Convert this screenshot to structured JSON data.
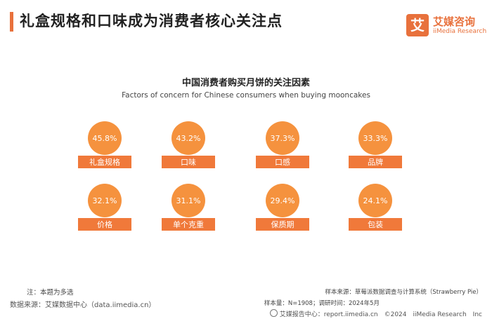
{
  "header": {
    "title": "礼盒规格和口味成为消费者核心关注点",
    "logo_mark": "艾",
    "logo_cn": "艾媒咨询",
    "logo_en": "iiMedia Research"
  },
  "chart_data": {
    "type": "bar",
    "title": "中国消费者购买月饼的关注因素",
    "subtitle": "Factors of concern for Chinese consumers when buying mooncakes",
    "categories": [
      "礼盒规格",
      "口味",
      "口感",
      "品牌",
      "价格",
      "单个克重",
      "保质期",
      "包装"
    ],
    "values": [
      45.8,
      43.2,
      37.3,
      33.3,
      32.1,
      31.1,
      29.4,
      24.1
    ],
    "value_labels": [
      "45.8%",
      "43.2%",
      "37.3%",
      "33.3%",
      "32.1%",
      "31.1%",
      "29.4%",
      "24.1%"
    ],
    "unit": "%",
    "colors": {
      "circle": "#f5923e",
      "label_box": "#f0793a",
      "text": "#ffffff"
    }
  },
  "footer": {
    "note": "注：本题为多选",
    "source": "数据来源：艾媒数据中心（data.iimedia.cn）",
    "sample_source": "样本来源：草莓派数据调查与计算系统（Strawberry Pie）",
    "sample_size": "样本量：N=1908；调研时间：2024年5月",
    "report_center": "艾媒报告中心：report.iimedia.cn　©2024　iiMedia Research　Inc"
  }
}
